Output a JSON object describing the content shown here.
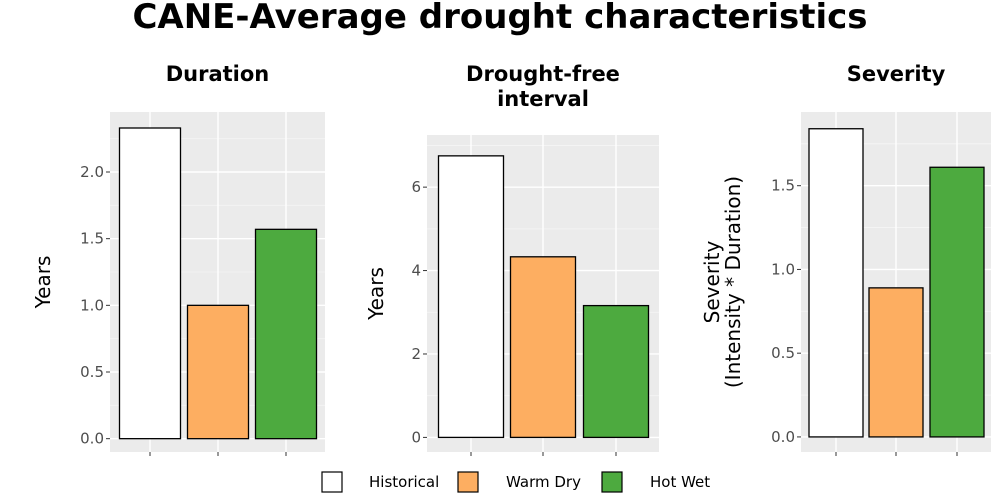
{
  "title": "CANE-Average drought characteristics",
  "legend": [
    {
      "label": "Historical",
      "color": "#ffffff"
    },
    {
      "label": "Warm Dry",
      "color": "#fdae61"
    },
    {
      "label": "Hot Wet",
      "color": "#4daa3f"
    }
  ],
  "chart_data": [
    {
      "type": "bar",
      "title": [
        "Duration"
      ],
      "ylabel": [
        "Years"
      ],
      "categories": [
        "Historical",
        "Warm Dry",
        "Hot Wet"
      ],
      "values": [
        2.33,
        1.0,
        1.57
      ],
      "ylim": [
        -0.1,
        2.45
      ],
      "yticks": [
        0.0,
        0.5,
        1.0,
        1.5,
        2.0
      ],
      "ytick_labels": [
        "0.0",
        "0.5",
        "1.0",
        "1.5",
        "2.0"
      ],
      "grid": true
    },
    {
      "type": "bar",
      "title": [
        "Drought-free",
        "interval"
      ],
      "ylabel": [
        "Years"
      ],
      "categories": [
        "Historical",
        "Warm Dry",
        "Hot Wet"
      ],
      "values": [
        6.75,
        4.33,
        3.16
      ],
      "ylim": [
        -0.35,
        7.25
      ],
      "yticks": [
        0,
        2,
        4,
        6
      ],
      "ytick_labels": [
        "0",
        "2",
        "4",
        "6"
      ],
      "grid": true
    },
    {
      "type": "bar",
      "title": [
        "Severity"
      ],
      "ylabel": [
        "Severity",
        "(Intensity * Duration)"
      ],
      "categories": [
        "Historical",
        "Warm Dry",
        "Hot Wet"
      ],
      "values": [
        1.84,
        0.89,
        1.61
      ],
      "ylim": [
        -0.09,
        1.94
      ],
      "yticks": [
        0.0,
        0.5,
        1.0,
        1.5
      ],
      "ytick_labels": [
        "0.0",
        "0.5",
        "1.0",
        "1.5"
      ],
      "grid": true
    }
  ]
}
